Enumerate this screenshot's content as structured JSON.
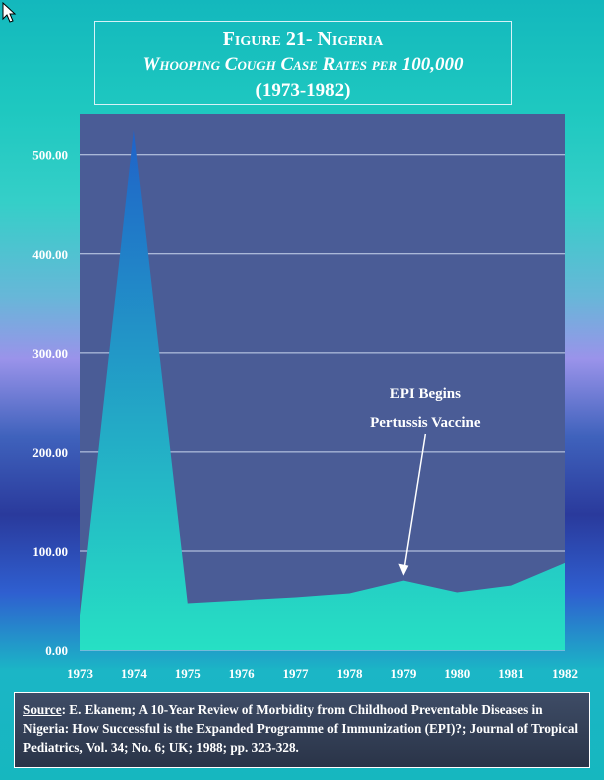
{
  "title": {
    "figure": "Figure 21- Nigeria",
    "subtitle": "Whooping Cough Case Rates per 100,000",
    "years": "(1973-1982)"
  },
  "chart_data": {
    "type": "area",
    "title": "Figure 21- Nigeria",
    "subtitle": "Whooping Cough Case Rates per 100,000",
    "x": [
      1973,
      1974,
      1975,
      1976,
      1977,
      1978,
      1979,
      1980,
      1981,
      1982
    ],
    "series": [
      {
        "values": [
          35,
          525,
          47,
          50,
          53,
          57,
          70,
          58,
          65,
          88
        ]
      }
    ],
    "x_tick_labels": [
      "1973",
      "1974",
      "1975",
      "1976",
      "1977",
      "1978",
      "1979",
      "1980",
      "1981",
      "1982"
    ],
    "y_tick_labels": [
      "0.00",
      "100.00",
      "200.00",
      "300.00",
      "400.00",
      "500.00"
    ],
    "y_ticks": [
      0,
      100,
      200,
      300,
      400,
      500
    ],
    "xlim": [
      1973,
      1982
    ],
    "ylim": [
      0,
      530
    ],
    "grid": true,
    "annotation": {
      "x": 1979,
      "y": 70,
      "lines": [
        "EPI Begins",
        "Pertussis Vaccine"
      ]
    },
    "colors": {
      "plot_background": "#4a5c96",
      "area_top": "#1f62c9",
      "area_bottom": "#26e0c4",
      "gridline": "#c9d6ee",
      "text": "#ffffff"
    }
  },
  "source": {
    "label": "Source",
    "text": ": E. Ekanem; A 10-Year Review of Morbidity from Childhood Preventable Diseases in Nigeria: How Successful is the Expanded Programme of Immunization (EPI)?; Journal of Tropical Pediatrics, Vol. 34; No. 6;  UK; 1988; pp. 323-328."
  },
  "icons": {
    "cursor": "mouse-pointer-icon"
  }
}
